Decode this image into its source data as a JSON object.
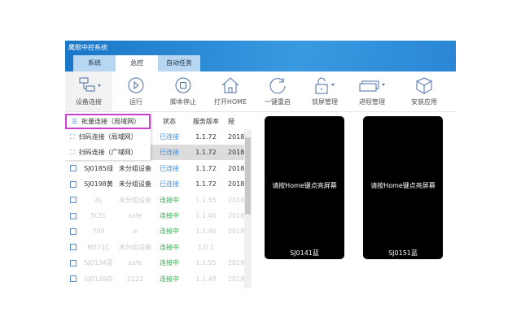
{
  "app": {
    "title": "鹰眼中控系统"
  },
  "tabs": [
    {
      "label": "系统"
    },
    {
      "label": "总控"
    },
    {
      "label": "自动任务"
    }
  ],
  "toolbar": [
    {
      "label": "设备连接",
      "icon": "device-connect-icon"
    },
    {
      "label": "运行",
      "icon": "play-icon"
    },
    {
      "label": "脚本停止",
      "icon": "stop-icon"
    },
    {
      "label": "打开HOME",
      "icon": "home-icon"
    },
    {
      "label": "一键重启",
      "icon": "refresh-icon"
    },
    {
      "label": "锁屏管理",
      "icon": "lock-icon"
    },
    {
      "label": "进程管理",
      "icon": "process-icon"
    },
    {
      "label": "安装应用",
      "icon": "package-icon"
    }
  ],
  "menu": [
    {
      "label": "批量连接（局域网）"
    },
    {
      "label": "扫码连接（局域网）"
    },
    {
      "label": "扫码连接（广域网）"
    }
  ],
  "columns": [
    "状态",
    "服务版本",
    "授"
  ],
  "rows": [
    {
      "name": "",
      "group": "",
      "status": "已连接",
      "version": "1.1.72",
      "date": "2018"
    },
    {
      "name": "",
      "group": "",
      "status": "已连接",
      "version": "1.1.72",
      "date": "2018"
    },
    {
      "name": "SJ0185绿",
      "group": "未分组设备",
      "status": "已连接",
      "version": "1.1.72",
      "date": "2018"
    },
    {
      "name": "SJ0198黄",
      "group": "未分组设备",
      "status": "已连接",
      "version": "1.1.72",
      "date": "2018"
    },
    {
      "name": "4s",
      "group": "未分组设备",
      "status": "连接中",
      "version": "1.1.55",
      "date": "2018"
    },
    {
      "name": "5CEL",
      "group": "safe",
      "status": "连接中",
      "version": "1.1.46",
      "date": "2018"
    },
    {
      "name": "799",
      "group": "a",
      "status": "连接中",
      "version": "1.1.46",
      "date": "2018"
    },
    {
      "name": "M571C",
      "group": "未分组设备",
      "status": "连接中",
      "version": "1.0.1",
      "date": ""
    },
    {
      "name": "SJ0134蓝",
      "group": "safe",
      "status": "连接中",
      "version": "1.1.55",
      "date": "2018"
    },
    {
      "name": "SJ0139白",
      "group": "2122",
      "status": "连接中",
      "version": "1.1.48",
      "date": "2018"
    }
  ],
  "phones": [
    {
      "message": "请按Home键点亮屏幕",
      "name": "SJ0141蓝"
    },
    {
      "message": "请按Home键点亮屏幕",
      "name": "SJ0151蓝"
    }
  ]
}
